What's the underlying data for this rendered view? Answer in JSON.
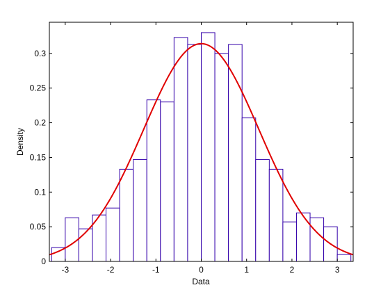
{
  "chart_data": {
    "type": "bar",
    "xlabel": "Data",
    "ylabel": "Density",
    "xlim": [
      -3.35,
      3.35
    ],
    "ylim": [
      0,
      0.345
    ],
    "xticks": [
      -3,
      -2,
      -1,
      0,
      1,
      2,
      3
    ],
    "xtick_labels": [
      "-3",
      "-2",
      "-1",
      "0",
      "1",
      "2",
      "3"
    ],
    "yticks": [
      0,
      0.05,
      0.1,
      0.15,
      0.2,
      0.25,
      0.3
    ],
    "ytick_labels": [
      "0",
      "0.05",
      "0.1",
      "0.15",
      "0.2",
      "0.25",
      "0.3"
    ],
    "grid": false,
    "histogram": {
      "bin_edges": [
        -3.3,
        -3.0,
        -2.7,
        -2.4,
        -2.1,
        -1.8,
        -1.5,
        -1.2,
        -0.9,
        -0.6,
        -0.3,
        0.0,
        0.3,
        0.6,
        0.9,
        1.2,
        1.5,
        1.8,
        2.1,
        2.4,
        2.7,
        3.0,
        3.3
      ],
      "density": [
        0.02,
        0.063,
        0.047,
        0.067,
        0.077,
        0.133,
        0.147,
        0.233,
        0.23,
        0.323,
        0.313,
        0.33,
        0.3,
        0.313,
        0.207,
        0.147,
        0.133,
        0.057,
        0.07,
        0.063,
        0.05,
        0.01
      ]
    },
    "fitted_curve": {
      "distribution": "normal",
      "mean": 0.0,
      "std": 1.27
    },
    "colors": {
      "bars": "#3300aa",
      "curve": "#e00000",
      "axes": "#000000"
    }
  }
}
